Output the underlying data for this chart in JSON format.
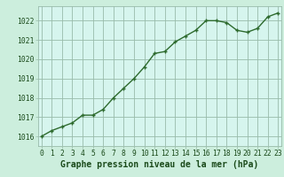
{
  "x": [
    0,
    1,
    2,
    3,
    4,
    5,
    6,
    7,
    8,
    9,
    10,
    11,
    12,
    13,
    14,
    15,
    16,
    17,
    18,
    19,
    20,
    21,
    22,
    23
  ],
  "y": [
    1016.0,
    1016.3,
    1016.5,
    1016.7,
    1017.1,
    1017.1,
    1017.4,
    1018.0,
    1018.5,
    1019.0,
    1019.6,
    1020.3,
    1020.4,
    1020.9,
    1021.2,
    1021.5,
    1022.0,
    1022.0,
    1021.9,
    1021.5,
    1021.4,
    1021.6,
    1022.2,
    1022.4
  ],
  "line_color": "#2d6a2d",
  "marker": "+",
  "bg_color": "#cceedd",
  "plot_bg_color": "#d6f5ee",
  "grid_color": "#99bbaa",
  "xlabel": "Graphe pression niveau de la mer (hPa)",
  "xlabel_color": "#1a4a1a",
  "ytick_labels": [
    "1016",
    "1017",
    "1018",
    "1019",
    "1020",
    "1021",
    "1022"
  ],
  "ytick_values": [
    1016,
    1017,
    1018,
    1019,
    1020,
    1021,
    1022
  ],
  "ylim": [
    1015.5,
    1022.75
  ],
  "xlim": [
    -0.3,
    23.3
  ],
  "xtick_values": [
    0,
    1,
    2,
    3,
    4,
    5,
    6,
    7,
    8,
    9,
    10,
    11,
    12,
    13,
    14,
    15,
    16,
    17,
    18,
    19,
    20,
    21,
    22,
    23
  ],
  "tick_label_color": "#1a4a1a",
  "tick_label_fontsize": 5.8,
  "xlabel_fontsize": 7.0,
  "line_width": 1.0,
  "marker_size": 3.5,
  "marker_ew": 1.0
}
